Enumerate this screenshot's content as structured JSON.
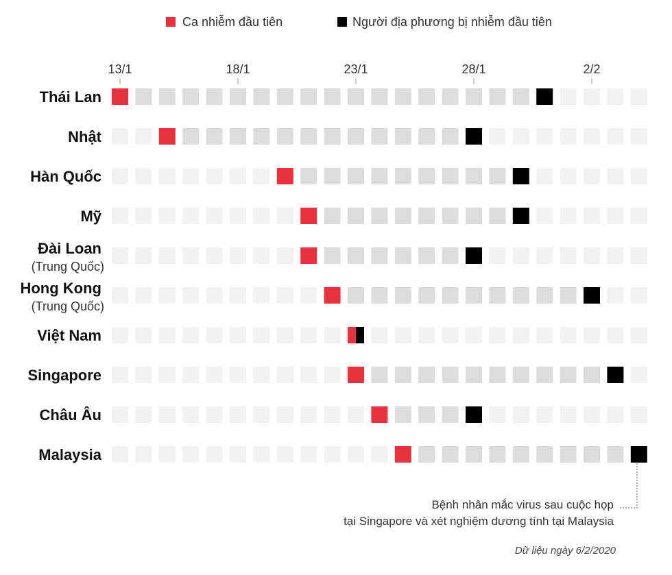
{
  "legend": [
    {
      "label": "Ca nhiễm đầu tiên",
      "color": "#e8333c"
    },
    {
      "label": "Người địa phương bị nhiễm đầu tiên",
      "color": "#000000"
    }
  ],
  "chart_data": {
    "type": "heatmap",
    "x_ticks": [
      "13/1",
      "18/1",
      "23/1",
      "28/1",
      "2/2"
    ],
    "x_tick_day_index": [
      0,
      5,
      10,
      15,
      20
    ],
    "days": [
      "13/1",
      "14/1",
      "15/1",
      "16/1",
      "17/1",
      "18/1",
      "19/1",
      "20/1",
      "21/1",
      "22/1",
      "23/1",
      "24/1",
      "25/1",
      "26/1",
      "27/1",
      "28/1",
      "29/1",
      "30/1",
      "31/1",
      "1/2",
      "2/2",
      "3/2",
      "4/2"
    ],
    "rows": [
      {
        "name": "Thái Lan",
        "sub": "",
        "first_case": "13/1",
        "first_local": "31/1"
      },
      {
        "name": "Nhật",
        "sub": "",
        "first_case": "15/1",
        "first_local": "28/1"
      },
      {
        "name": "Hàn Quốc",
        "sub": "",
        "first_case": "20/1",
        "first_local": "30/1"
      },
      {
        "name": "Mỹ",
        "sub": "",
        "first_case": "21/1",
        "first_local": "30/1"
      },
      {
        "name": "Đài Loan",
        "sub": "(Trung Quốc)",
        "first_case": "21/1",
        "first_local": "28/1"
      },
      {
        "name": "Hong Kong",
        "sub": "(Trung Quốc)",
        "first_case": "22/1",
        "first_local": "2/2"
      },
      {
        "name": "Việt Nam",
        "sub": "",
        "first_case": "23/1",
        "first_local": "23/1"
      },
      {
        "name": "Singapore",
        "sub": "",
        "first_case": "23/1",
        "first_local": "3/2"
      },
      {
        "name": "Châu Âu",
        "sub": "",
        "first_case": "24/1",
        "first_local": "28/1"
      },
      {
        "name": "Malaysia",
        "sub": "",
        "first_case": "25/1",
        "first_local": "4/2"
      }
    ],
    "colors": {
      "first_case": "#e8333c",
      "first_local": "#000000",
      "between": "#dcdcde",
      "outside": "#f2f2f3"
    }
  },
  "annotation": {
    "line1": "Bệnh nhân mắc virus sau cuộc họp",
    "line2": "tại Singapore và xét nghiệm dương tính tại Malaysia"
  },
  "source": "Dữ liệu ngày 6/2/2020"
}
